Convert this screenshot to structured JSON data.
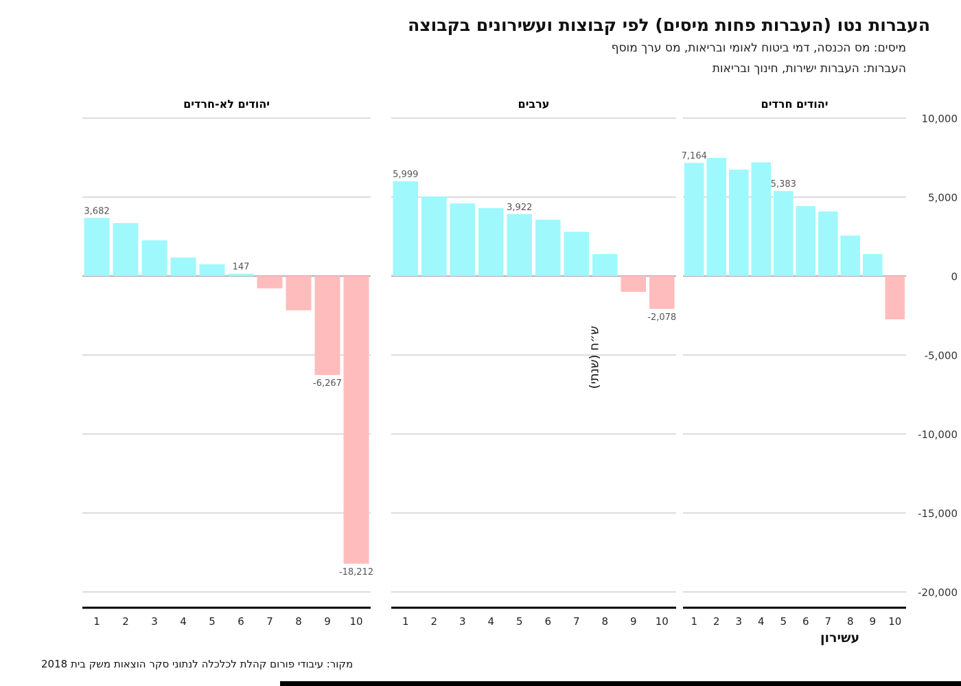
{
  "title": "העברות נטו (העברות פחות מיסים) לפי קבוצות ועשירונים בקבוצה",
  "subtitle_taxes": "מיסים: מס הכנסה, דמי ביטוח לאומי ובריאות, מס ערך מוסף",
  "subtitle_transfers": "העברות: העברות ישירות, חינוך ובריאות",
  "source": "מקור: עיבודי פורום קהלת לכלכלה לנתוני סקר הוצאות משק בית 2018",
  "chart_data": {
    "type": "bar",
    "xlabel": "עשירון",
    "ylabel": "ש״ח (שנתי)",
    "ylim": [
      -20000,
      10000
    ],
    "yticks": [
      10000,
      5000,
      0,
      -5000,
      -10000,
      -15000,
      -20000
    ],
    "ytick_labels": [
      "10,000",
      "5,000",
      "0",
      "-5,000",
      "-10,000",
      "-15,000",
      "-20,000"
    ],
    "grid": true,
    "categories": [
      "1",
      "2",
      "3",
      "4",
      "5",
      "6",
      "7",
      "8",
      "9",
      "10"
    ],
    "colors": {
      "positive": "#9ff8fc",
      "negative": "#ffbcbc",
      "label": "#555555"
    },
    "panels": [
      {
        "name": "יהודים לא-חרדים",
        "values": [
          3682,
          3350,
          2260,
          1170,
          740,
          147,
          -780,
          -2170,
          -6267,
          -18212
        ],
        "labels": {
          "0": "3,682",
          "5": "147",
          "8": "-6,267",
          "9": "-18,212"
        }
      },
      {
        "name": "ערבים",
        "values": [
          5999,
          5040,
          4600,
          4300,
          3922,
          3570,
          2800,
          1390,
          -1000,
          -2078
        ],
        "labels": {
          "0": "5,999",
          "4": "3,922",
          "9": "-2,078"
        }
      },
      {
        "name": "יהודים חרדים",
        "values": [
          7164,
          7480,
          6740,
          7200,
          5383,
          4430,
          4090,
          2560,
          1390,
          -2740
        ],
        "labels": {
          "0": "7,164",
          "4": "5,383"
        }
      }
    ]
  }
}
